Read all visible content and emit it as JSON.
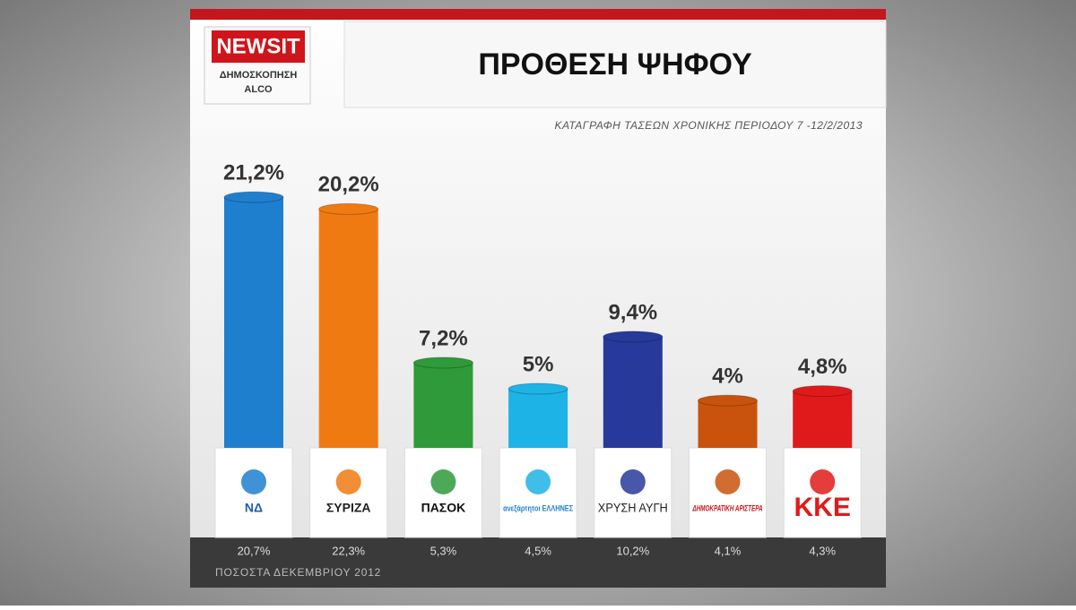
{
  "header": {
    "logo": "NEWSIT",
    "logo_sub": "ΔΗΜΟΣΚΟΠΗΣΗ",
    "pollster": "ALCO"
  },
  "chart_data": {
    "type": "bar",
    "title": "ΠΡΟΘΕΣΗ ΨΗΦΟΥ",
    "subtitle": "ΚΑΤΑΓΡΑΦΗ ΤΑΣΕΩΝ ΧΡΟΝΙΚΗΣ ΠΕΡΙΟΔΟΥ 7 -12/2/2013",
    "categories": [
      "ΝΔ",
      "ΣΥΡΙΖΑ",
      "ΠΑΣΟΚ",
      "ανεξάρτητοι ΕΛΛΗΝΕΣ",
      "ΧΡΥΣΗ ΑΥΓΗ",
      "ΔΗΜΟΚΡΑΤΙΚΗ ΑΡΙΣΤΕΡΑ",
      "ΚΚΕ"
    ],
    "series": [
      {
        "colors": [
          "#1f7fcf",
          "#f07a12",
          "#2e9a3a",
          "#1eb3e6",
          "#27399a",
          "#c9530c",
          "#e01a1a"
        ],
        "values": [
          21.2,
          20.2,
          7.2,
          5,
          9.4,
          4,
          4.8
        ],
        "value_labels": [
          "21,2%",
          "20,2%",
          "7,2%",
          "5%",
          "9,4%",
          "4%",
          "4,8%"
        ]
      },
      {
        "name": "ΠΟΣΟΣΤΑ ΔΕΚΕΜΒΡΙΟΥ 2012",
        "values": [
          20.7,
          22.3,
          5.3,
          4.5,
          10.2,
          4.1,
          4.3
        ],
        "value_labels": [
          "20,7%",
          "22,3%",
          "5,3%",
          "4,5%",
          "10,2%",
          "4,1%",
          "4,3%"
        ]
      }
    ]
  }
}
